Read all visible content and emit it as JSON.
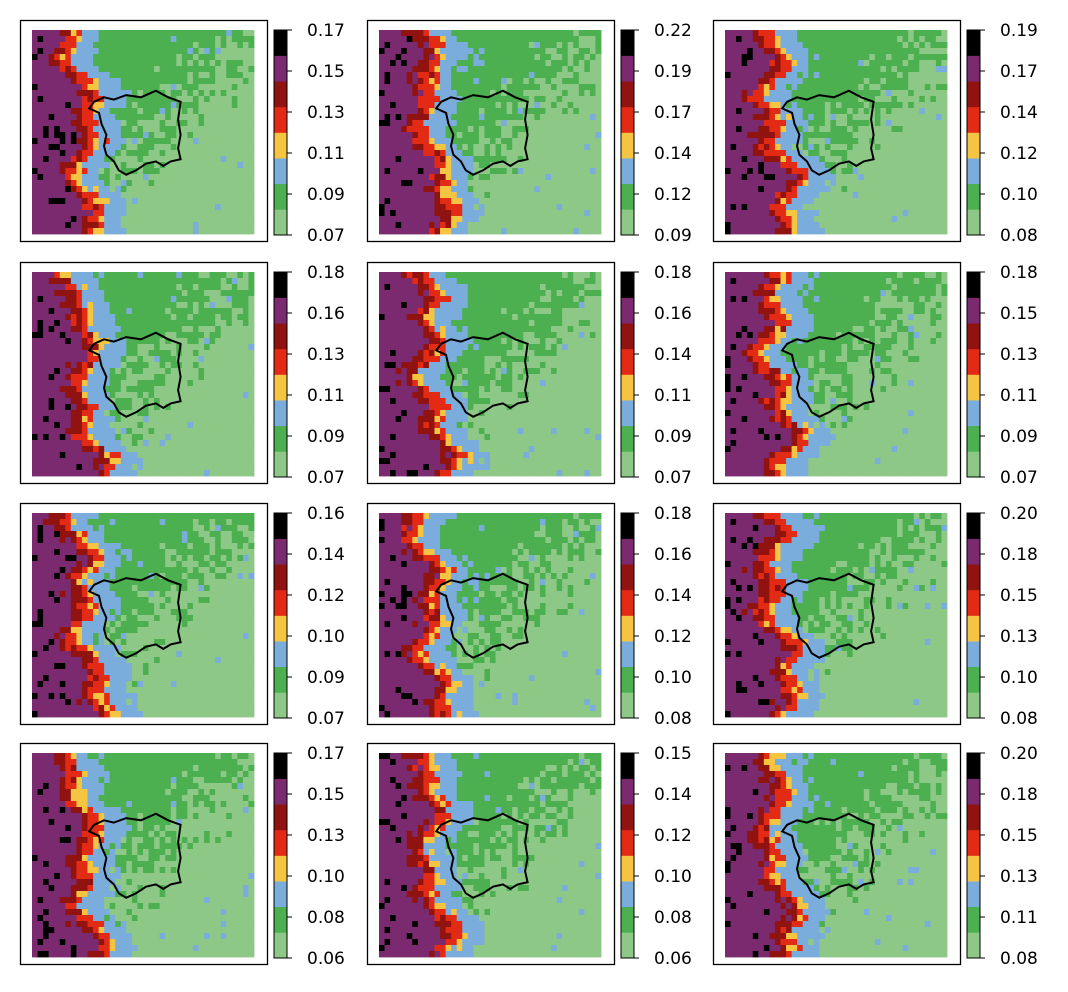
{
  "chart_data": {
    "type": "heatmap",
    "layout": {
      "rows": 4,
      "cols": 3
    },
    "colors": [
      "#8dc887",
      "#4caf50",
      "#7aaddb",
      "#f5c542",
      "#e32a15",
      "#901310",
      "#7b2a70",
      "#000000"
    ],
    "legend_placement": "right of each panel",
    "grid": false,
    "panels": [
      {
        "colorbar_ticks": [
          "0.07",
          "0.09",
          "0.11",
          "0.13",
          "0.15",
          "0.17"
        ]
      },
      {
        "colorbar_ticks": [
          "0.09",
          "0.12",
          "0.14",
          "0.17",
          "0.19",
          "0.22"
        ]
      },
      {
        "colorbar_ticks": [
          "0.08",
          "0.10",
          "0.12",
          "0.14",
          "0.17",
          "0.19"
        ]
      },
      {
        "colorbar_ticks": [
          "0.07",
          "0.09",
          "0.11",
          "0.13",
          "0.16",
          "0.18"
        ]
      },
      {
        "colorbar_ticks": [
          "0.07",
          "0.09",
          "0.11",
          "0.14",
          "0.16",
          "0.18"
        ]
      },
      {
        "colorbar_ticks": [
          "0.07",
          "0.09",
          "0.11",
          "0.13",
          "0.15",
          "0.18"
        ]
      },
      {
        "colorbar_ticks": [
          "0.07",
          "0.09",
          "0.10",
          "0.12",
          "0.14",
          "0.16"
        ]
      },
      {
        "colorbar_ticks": [
          "0.08",
          "0.10",
          "0.12",
          "0.14",
          "0.16",
          "0.18"
        ]
      },
      {
        "colorbar_ticks": [
          "0.08",
          "0.10",
          "0.13",
          "0.15",
          "0.18",
          "0.20"
        ]
      },
      {
        "colorbar_ticks": [
          "0.06",
          "0.08",
          "0.10",
          "0.13",
          "0.15",
          "0.17"
        ]
      },
      {
        "colorbar_ticks": [
          "0.06",
          "0.08",
          "0.10",
          "0.12",
          "0.14",
          "0.15"
        ]
      },
      {
        "colorbar_ticks": [
          "0.08",
          "0.11",
          "0.13",
          "0.15",
          "0.18",
          "0.20"
        ]
      }
    ]
  }
}
